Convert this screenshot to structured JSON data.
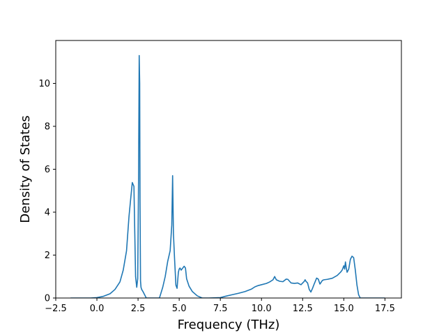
{
  "chart_data": {
    "type": "line",
    "title": "",
    "xlabel": "Frequency (THz)",
    "ylabel": "Density of States",
    "xlim": [
      -2.5,
      18.5
    ],
    "ylim": [
      0,
      12
    ],
    "xticks": [
      -2.5,
      0.0,
      2.5,
      5.0,
      7.5,
      10.0,
      12.5,
      15.0,
      17.5
    ],
    "xtick_labels": [
      "−2.5",
      "0.0",
      "2.5",
      "5.0",
      "7.5",
      "10.0",
      "12.5",
      "15.0",
      "17.5"
    ],
    "yticks": [
      0,
      2,
      4,
      6,
      8,
      10
    ],
    "ytick_labels": [
      "0",
      "2",
      "4",
      "6",
      "8",
      "10"
    ],
    "grid": false,
    "legend": "none",
    "line_color": "#1f77b4",
    "series": [
      {
        "x": [
          -1.6,
          -0.4,
          0.0,
          0.4,
          0.8,
          1.1,
          1.4,
          1.6,
          1.8,
          1.95,
          2.05,
          2.15,
          2.25,
          2.35,
          2.42,
          2.48,
          2.53,
          2.57,
          2.6,
          2.62,
          2.65,
          2.68,
          2.72,
          2.8,
          2.9,
          3.0,
          3.2,
          3.8,
          4.0,
          4.15,
          4.3,
          4.45,
          4.55,
          4.6,
          4.65,
          4.72,
          4.8,
          4.87,
          4.95,
          5.0,
          5.05,
          5.12,
          5.2,
          5.3,
          5.38,
          5.45,
          5.6,
          5.8,
          6.1,
          6.4,
          6.8,
          7.5,
          7.8,
          8.2,
          8.6,
          9.0,
          9.4,
          9.6,
          9.8,
          10.0,
          10.3,
          10.5,
          10.7,
          10.8,
          10.9,
          11.1,
          11.3,
          11.5,
          11.6,
          11.8,
          12.0,
          12.2,
          12.4,
          12.6,
          12.65,
          12.7,
          12.8,
          12.9,
          13.0,
          13.1,
          13.2,
          13.35,
          13.45,
          13.55,
          13.7,
          13.8,
          14.0,
          14.3,
          14.6,
          14.8,
          14.9,
          15.0,
          15.05,
          15.1,
          15.15,
          15.2,
          15.3,
          15.4,
          15.5,
          15.6,
          15.7,
          15.8,
          15.9,
          16.0,
          16.1,
          17.5
        ],
        "y": [
          0.0,
          0.0,
          0.02,
          0.08,
          0.2,
          0.4,
          0.75,
          1.3,
          2.2,
          3.8,
          4.6,
          5.38,
          5.2,
          1.0,
          0.5,
          0.9,
          5.5,
          11.3,
          10.0,
          4.5,
          0.8,
          0.5,
          0.4,
          0.3,
          0.15,
          0.0,
          0.0,
          0.0,
          0.5,
          1.0,
          1.7,
          2.2,
          3.4,
          5.7,
          3.0,
          1.8,
          0.6,
          0.45,
          1.2,
          1.35,
          1.4,
          1.3,
          1.38,
          1.48,
          1.4,
          0.9,
          0.55,
          0.3,
          0.1,
          0.0,
          0.0,
          0.02,
          0.08,
          0.15,
          0.22,
          0.3,
          0.42,
          0.52,
          0.58,
          0.62,
          0.68,
          0.75,
          0.85,
          1.0,
          0.85,
          0.78,
          0.76,
          0.88,
          0.87,
          0.7,
          0.68,
          0.7,
          0.62,
          0.78,
          0.85,
          0.78,
          0.7,
          0.4,
          0.28,
          0.45,
          0.65,
          0.93,
          0.88,
          0.65,
          0.82,
          0.85,
          0.87,
          0.92,
          1.05,
          1.2,
          1.3,
          1.5,
          1.35,
          1.68,
          1.4,
          1.2,
          1.35,
          1.8,
          1.95,
          1.88,
          1.3,
          0.6,
          0.15,
          0.0,
          0.0,
          0.0
        ]
      }
    ]
  }
}
